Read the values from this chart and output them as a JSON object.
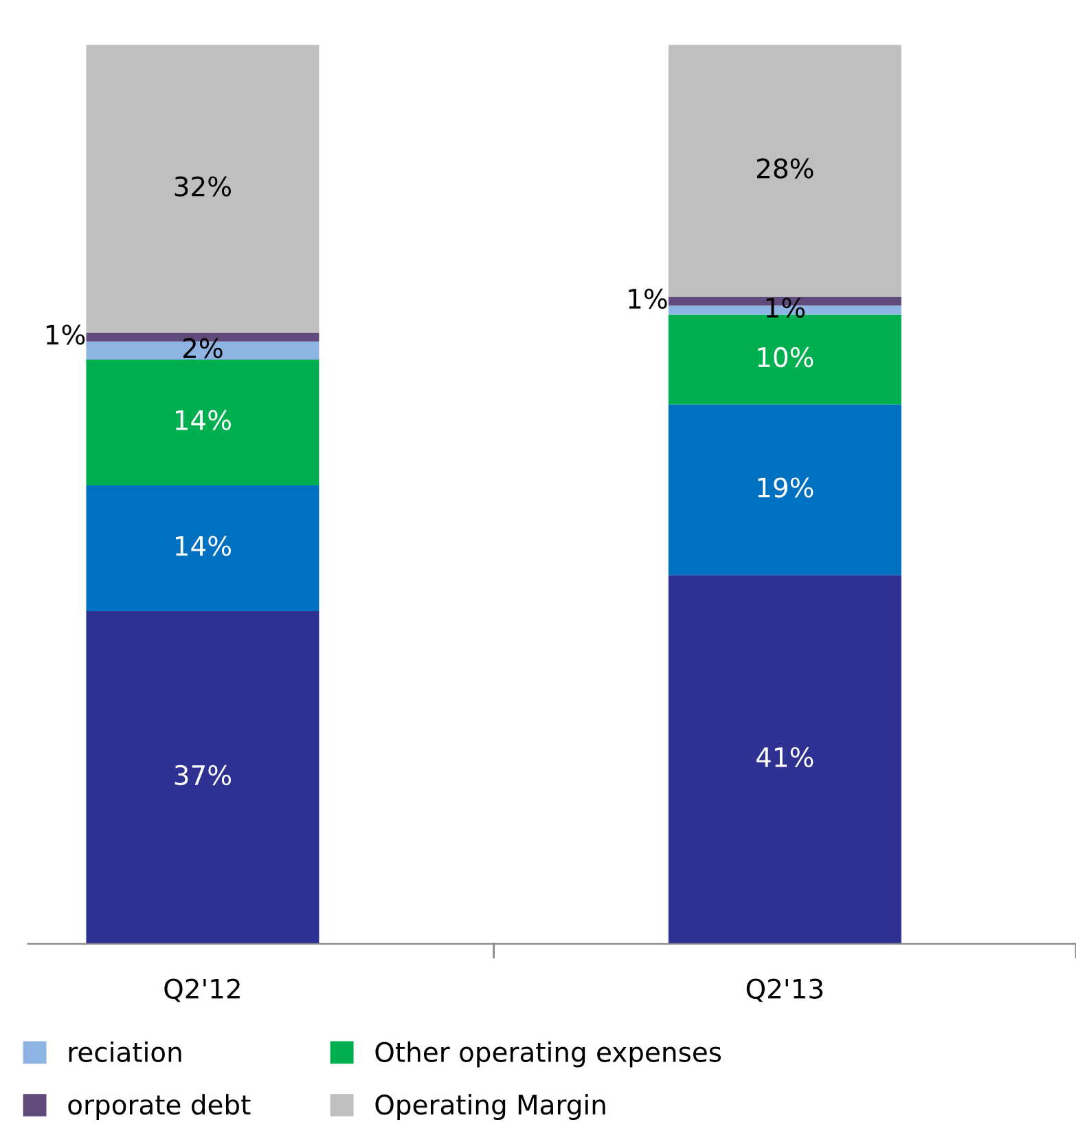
{
  "chart_data": {
    "type": "bar",
    "stacked": true,
    "categories": [
      "Q2'12",
      "Q2'13"
    ],
    "series": [
      {
        "color": "#2e3192",
        "values": [
          37,
          41
        ],
        "value_labels": [
          "37%",
          "41%"
        ]
      },
      {
        "color": "#0070c0",
        "values": [
          14,
          19
        ],
        "value_labels": [
          "14%",
          "19%"
        ]
      },
      {
        "name": "Other operating expenses",
        "color": "#00b050",
        "values": [
          14,
          10
        ],
        "value_labels": [
          "14%",
          "10%"
        ]
      },
      {
        "name": "reciation",
        "color": "#8db4e2",
        "values": [
          2,
          1
        ],
        "value_labels": [
          "2%",
          "1%"
        ]
      },
      {
        "name": "orporate debt",
        "color": "#604a7b",
        "values": [
          1,
          1
        ],
        "value_labels": [
          "1%",
          "1%"
        ]
      },
      {
        "name": "Operating Margin",
        "color": "#bfbfbf",
        "values": [
          32,
          28
        ],
        "value_labels": [
          "32%",
          "28%"
        ]
      }
    ],
    "legend": "bottom",
    "grid": false
  }
}
